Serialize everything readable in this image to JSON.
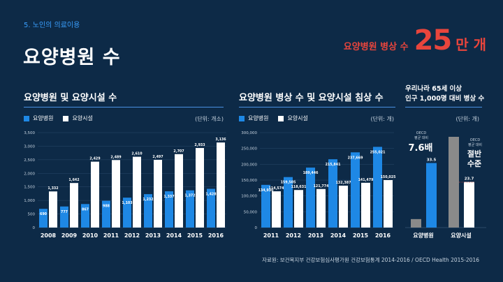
{
  "header": {
    "section_label": "5. 노인의 의료이용",
    "title": "요양병원 수",
    "highlight_label": "요양병원 병상 수",
    "highlight_value": "25",
    "highlight_unit": "만 개"
  },
  "colors": {
    "hospital": "#1e88e5",
    "facility": "#ffffff",
    "oecd": "#8a8a8a",
    "accent": "#e8453c",
    "background": "#0d2a47"
  },
  "chart_data": [
    {
      "type": "bar",
      "title": "요양병원 및 요양시설 수",
      "unit": "(단위: 개소)",
      "categories": [
        "2008",
        "2009",
        "2010",
        "2011",
        "2012",
        "2013",
        "2014",
        "2015",
        "2016"
      ],
      "series": [
        {
          "name": "요양병원",
          "values": [
            690,
            777,
            867,
            988,
            1103,
            1232,
            1337,
            1372,
            1428
          ],
          "labels": [
            "690",
            "777",
            "867",
            "988",
            "1,103",
            "1,232",
            "1,337",
            "1,372",
            "1,428"
          ]
        },
        {
          "name": "요양시설",
          "values": [
            1332,
            1642,
            2429,
            2489,
            2610,
            2497,
            2707,
            2933,
            3136
          ],
          "labels": [
            "1,332",
            "1,642",
            "2,429",
            "2,489",
            "2,610",
            "2,497",
            "2,707",
            "2,933",
            "3,136"
          ]
        }
      ],
      "ylim": [
        0,
        3500
      ],
      "yticks": [
        0,
        500,
        1000,
        1500,
        2000,
        2500,
        3000,
        3500
      ],
      "ytick_labels": [
        "0",
        "500",
        "1,000",
        "1,500",
        "2,000",
        "2,500",
        "3,000",
        "3,500"
      ]
    },
    {
      "type": "bar",
      "title": "요양병원 병상 수 및 요양시설 침상 수",
      "unit": "(단위: 개)",
      "categories": [
        "2011",
        "2012",
        "2013",
        "2014",
        "2015",
        "2016"
      ],
      "series": [
        {
          "name": "요양병원",
          "values": [
            134930,
            159505,
            189446,
            215841,
            237669,
            255021
          ],
          "labels": [
            "134,930",
            "159,505",
            "189,446",
            "215,841",
            "237,669",
            "255,021"
          ]
        },
        {
          "name": "요양시설",
          "values": [
            114574,
            118631,
            121774,
            132387,
            141479,
            150025
          ],
          "labels": [
            "114,574",
            "118,631",
            "121,774",
            "132,387",
            "141,479",
            "150,025"
          ]
        }
      ],
      "ylim": [
        0,
        300000
      ],
      "yticks": [
        0,
        50000,
        100000,
        150000,
        200000,
        250000,
        300000
      ],
      "ytick_labels": [
        "0",
        "50,000",
        "100,000",
        "150,000",
        "200,000",
        "250,000",
        "300,000"
      ]
    },
    {
      "type": "bar",
      "title_line1": "우리나라 65세 이상",
      "title_line2": "인구 1,000명 대비 병상 수",
      "unit": "(단위: 개)",
      "categories": [
        "요양병원",
        "요양시설"
      ],
      "series": [
        {
          "name": "OECD 평균 대비",
          "values": [
            4.4,
            47.1
          ]
        },
        {
          "name": "우리나라",
          "values": [
            33.5,
            23.7
          ],
          "labels": [
            "33.5",
            "23.7"
          ]
        }
      ],
      "ylim": [
        0,
        50
      ],
      "annotations": {
        "oecd_label": "OECD 평균 대비",
        "hospital_ratio": "7.6배",
        "facility_line1": "절반",
        "facility_line2": "수준"
      }
    }
  ],
  "footer": {
    "source": "자료원: 보건복지부 건강보험심사평가원 건강보험통계 2014-2016 / OECD Health 2015-2016"
  }
}
